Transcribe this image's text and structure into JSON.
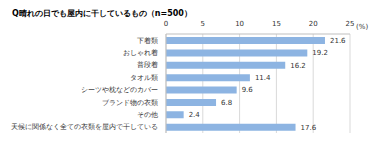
{
  "chart_data": {
    "type": "bar",
    "title": "Q晴れの日でも屋内に干しているもの（n=500）",
    "x_label": "(%)",
    "orientation": "horizontal",
    "categories": [
      "下着類",
      "おしゃれ着",
      "普段着",
      "タオル類",
      "シーツや枕などのカバー",
      "ブランド物の衣類",
      "その他",
      "天候に関係なく全ての衣類を屋内で干している"
    ],
    "values": [
      21.6,
      19.2,
      16.2,
      11.4,
      9.6,
      6.8,
      2.4,
      17.6
    ],
    "color": "#8db4e2",
    "xlim": [
      0,
      25
    ],
    "xticks": [
      0,
      5,
      10,
      15,
      20,
      25
    ],
    "grid": true,
    "data_labels": true
  }
}
